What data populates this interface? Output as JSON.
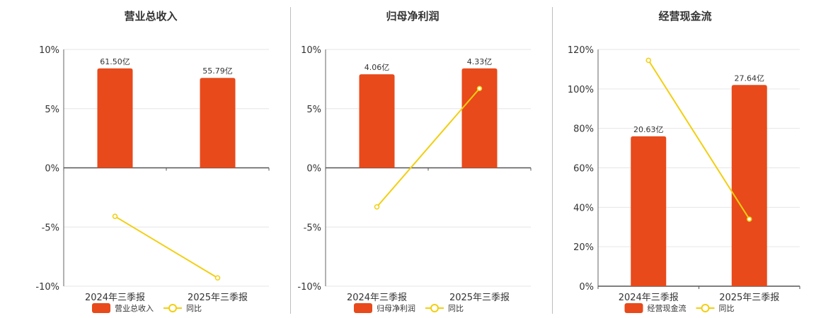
{
  "chart_data": [
    {
      "type": "bar",
      "title": "营业总收入",
      "categories": [
        "2024年三季报",
        "2025年三季报"
      ],
      "series": [
        {
          "name": "营业总收入",
          "type": "bar",
          "values": [
            8.4,
            7.6
          ],
          "labels": [
            "61.50亿",
            "55.79亿"
          ]
        },
        {
          "name": "同比",
          "type": "line",
          "values": [
            -4.1,
            -9.3
          ]
        }
      ],
      "ylim": [
        -10,
        10
      ],
      "yticks": [
        10,
        5,
        0,
        -5,
        -10
      ],
      "tick_labels": [
        "10%",
        "5%",
        "0%",
        "-5%",
        "-10%"
      ],
      "legend": "bottom",
      "colors": {
        "bar": "#e84a1b",
        "line": "#f2cf10"
      }
    },
    {
      "type": "bar",
      "title": "归母净利润",
      "categories": [
        "2024年三季报",
        "2025年三季报"
      ],
      "series": [
        {
          "name": "归母净利润",
          "type": "bar",
          "values": [
            7.9,
            8.4
          ],
          "labels": [
            "4.06亿",
            "4.33亿"
          ]
        },
        {
          "name": "同比",
          "type": "line",
          "values": [
            -3.3,
            6.7
          ]
        }
      ],
      "ylim": [
        -10,
        10
      ],
      "yticks": [
        10,
        5,
        0,
        -5,
        -10
      ],
      "tick_labels": [
        "10%",
        "5%",
        "0%",
        "-5%",
        "-10%"
      ],
      "legend": "bottom",
      "colors": {
        "bar": "#e84a1b",
        "line": "#f2cf10"
      }
    },
    {
      "type": "bar",
      "title": "经营现金流",
      "categories": [
        "2024年三季报",
        "2025年三季报"
      ],
      "series": [
        {
          "name": "经营现金流",
          "type": "bar",
          "values": [
            76,
            102
          ],
          "labels": [
            "20.63亿",
            "27.64亿"
          ]
        },
        {
          "name": "同比",
          "type": "line",
          "values": [
            114.5,
            34
          ]
        }
      ],
      "ylim": [
        0,
        120
      ],
      "yticks": [
        120,
        100,
        80,
        60,
        40,
        20,
        0
      ],
      "tick_labels": [
        "120%",
        "100%",
        "80%",
        "60%",
        "40%",
        "20%",
        "0%"
      ],
      "legend": "bottom",
      "colors": {
        "bar": "#e84a1b",
        "line": "#f2cf10"
      }
    }
  ]
}
